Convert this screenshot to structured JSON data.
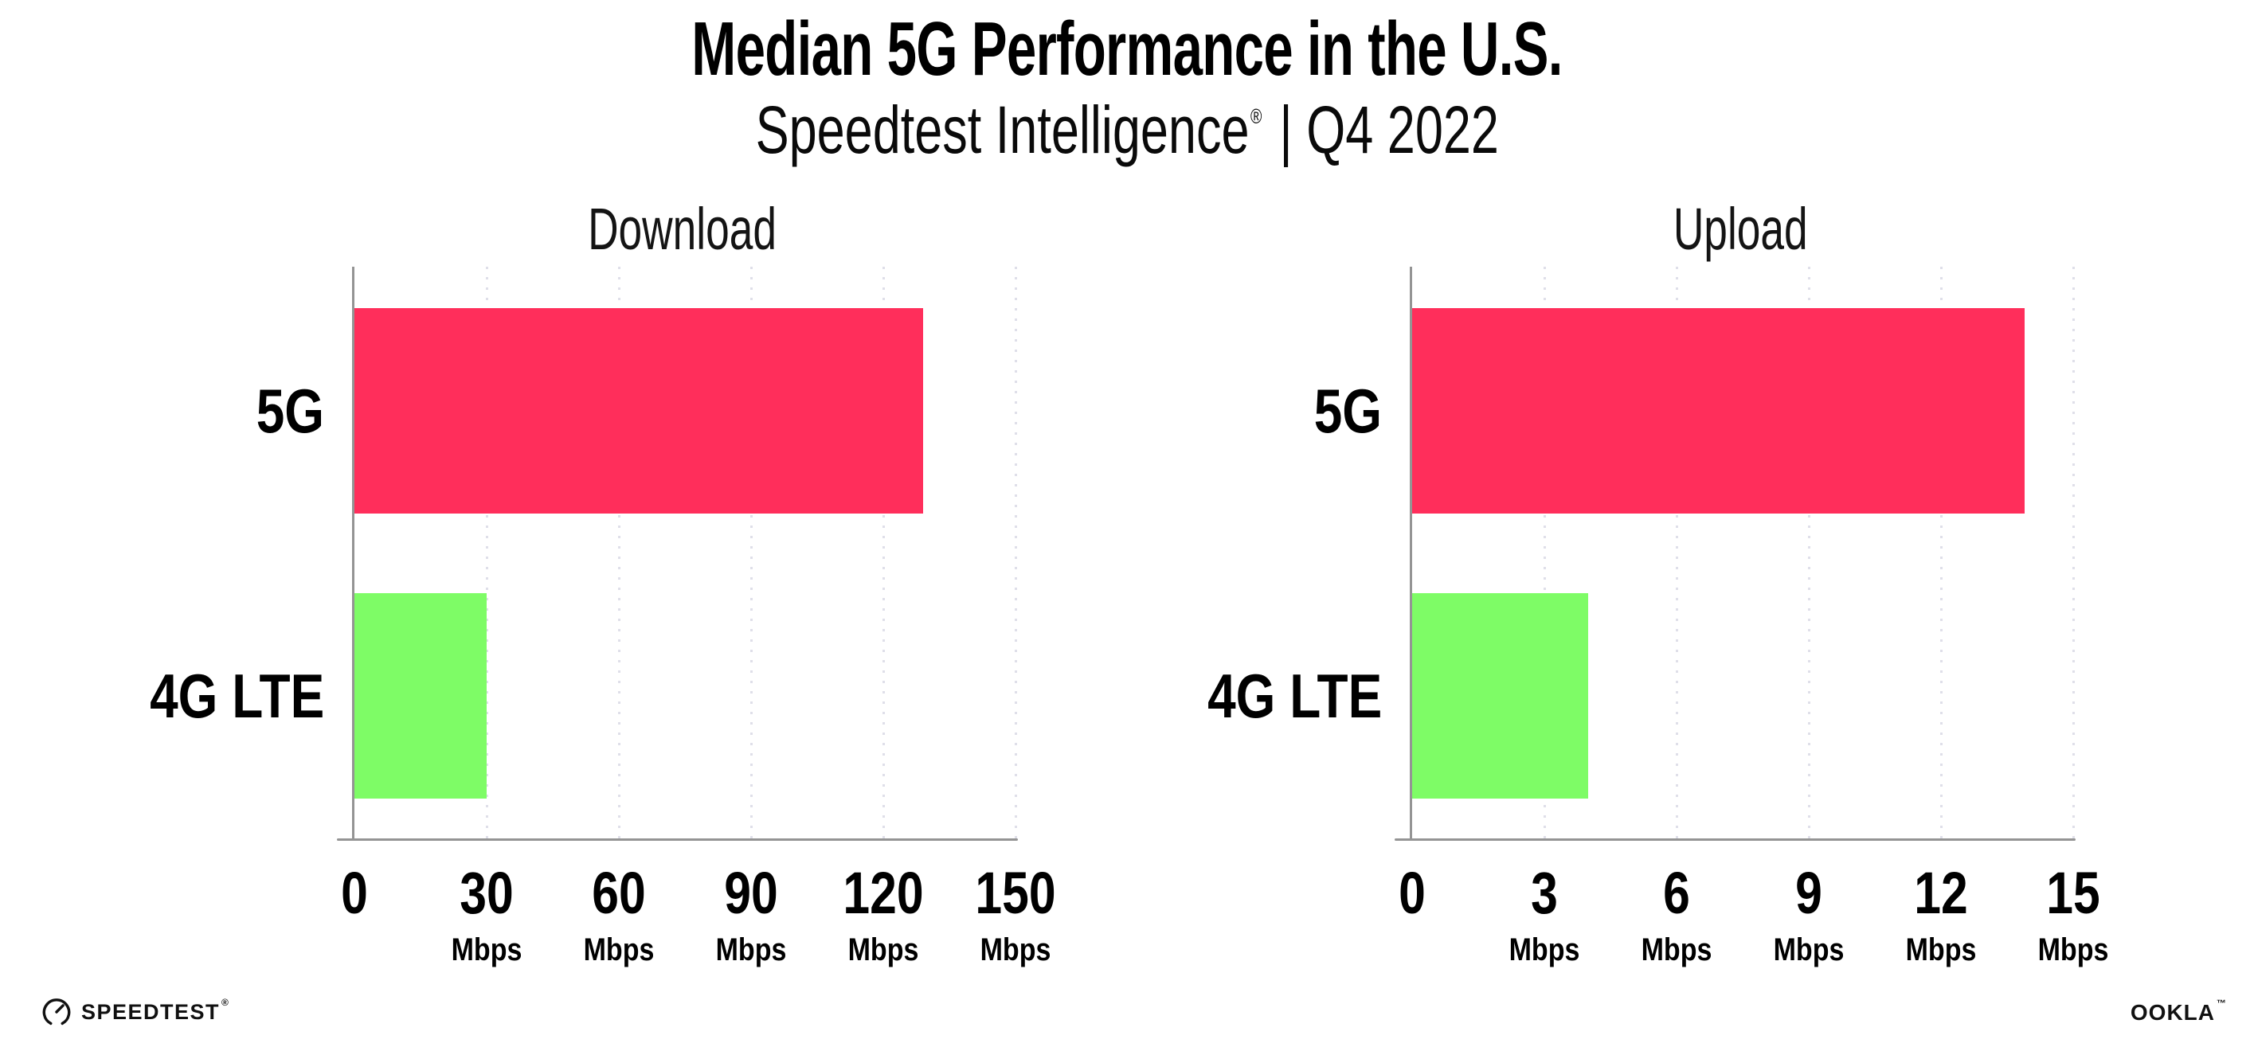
{
  "header": {
    "title": "Median 5G Performance in the U.S.",
    "subtitle_brand": "Speedtest Intelligence",
    "subtitle_reg": "®",
    "subtitle_rest": "| Q4 2022"
  },
  "chart_data": [
    {
      "type": "bar",
      "orientation": "horizontal",
      "title": "Download",
      "categories": [
        "5G",
        "4G LTE"
      ],
      "values": [
        129,
        30
      ],
      "unit": "Mbps",
      "tick_unit": "Mbps",
      "xlim": [
        0,
        150
      ],
      "xticks": [
        0,
        30,
        60,
        90,
        120,
        150
      ],
      "colors": [
        "#FF2E5B",
        "#7EFC66"
      ],
      "grid": "dotted-vertical",
      "legend": "none"
    },
    {
      "type": "bar",
      "orientation": "horizontal",
      "title": "Upload",
      "categories": [
        "5G",
        "4G LTE"
      ],
      "values": [
        13.9,
        4
      ],
      "unit": "Mbps",
      "tick_unit": "Mbps",
      "xlim": [
        0,
        15
      ],
      "xticks": [
        0,
        3,
        6,
        9,
        12,
        15
      ],
      "colors": [
        "#FF2E5B",
        "#7EFC66"
      ],
      "grid": "dotted-vertical",
      "legend": "none"
    }
  ],
  "palette": {
    "bar_5g": "#FF2E5B",
    "bar_4g_lte": "#7EFC66",
    "axis": "#949494",
    "gridline": "#dfdfe9",
    "text": "#000000"
  },
  "footer": {
    "speedtest_label": "SPEEDTEST",
    "speedtest_mark": "®",
    "speedtest_icon": "gauge-icon",
    "ookla_label": "OOKLA",
    "ookla_mark": "™"
  }
}
